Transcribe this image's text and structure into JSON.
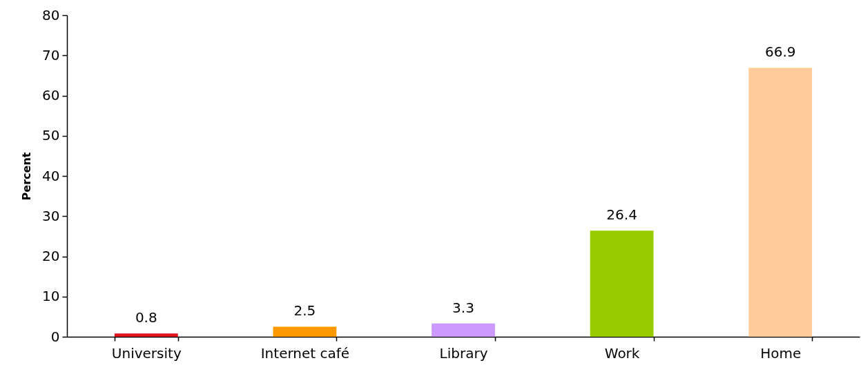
{
  "chart_data": {
    "type": "bar",
    "ylabel": "Percent",
    "categories": [
      "University",
      "Internet café",
      "Library",
      "Work",
      "Home"
    ],
    "values": [
      0.8,
      2.5,
      3.3,
      26.4,
      66.9
    ],
    "colors": [
      "#e0141e",
      "#ff9900",
      "#cc99ff",
      "#99cc00",
      "#ffcc99"
    ],
    "ylim": [
      0,
      80
    ],
    "yticks": [
      0,
      10,
      20,
      30,
      40,
      50,
      60,
      70,
      80
    ],
    "grid": false,
    "data_labels": true
  }
}
